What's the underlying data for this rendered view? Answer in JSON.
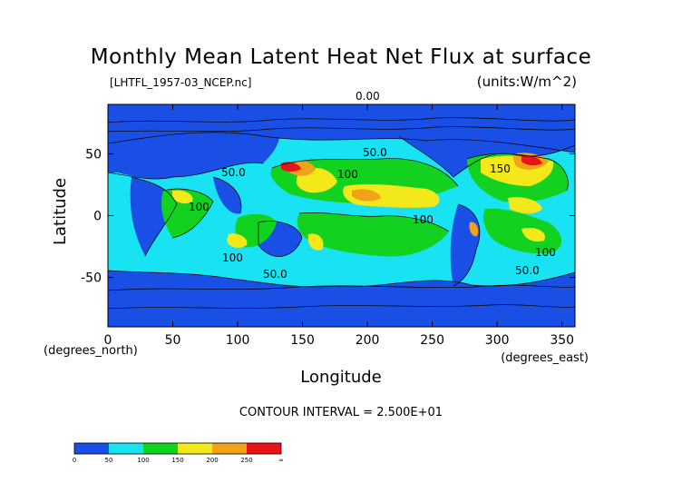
{
  "chart_data": {
    "type": "heatmap",
    "title": "Monthly Mean Latent Heat Net Flux at surface",
    "source_file": "[LHTFL_1957-03_NCEP.nc]",
    "units": "(units:W/m^2)",
    "xlabel": "Longitude",
    "xunits": "(degrees_east)",
    "ylabel": "Latitude",
    "yunits": "(degrees_north)",
    "xlim": [
      0,
      360
    ],
    "ylim": [
      -90,
      90
    ],
    "x_ticks": [
      0,
      50,
      100,
      150,
      200,
      250,
      300,
      350
    ],
    "y_ticks": [
      50,
      0,
      -50
    ],
    "contour_interval_label": "CONTOUR INTERVAL = 2.500E+01",
    "contour_labels": [
      "0.00",
      "50.0",
      "50.0",
      "100",
      "150",
      "100",
      "100",
      "100",
      "100",
      "50.0",
      "50.0"
    ],
    "colorbar": {
      "boundaries": [
        "0",
        "50",
        "100",
        "150",
        "200",
        "250",
        "∞"
      ],
      "colors": [
        "#1a4fe6",
        "#19e3f2",
        "#12d11f",
        "#f2e81a",
        "#f2a219",
        "#e8141a"
      ]
    }
  }
}
